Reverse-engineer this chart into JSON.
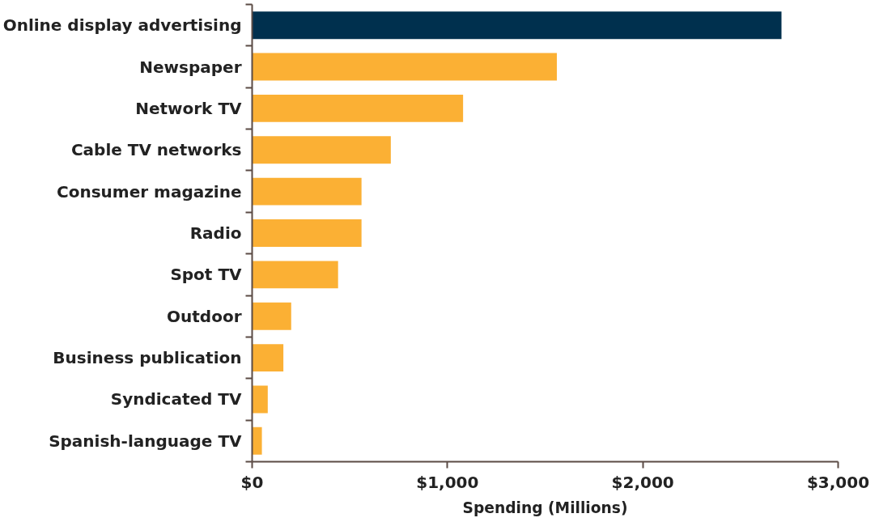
{
  "chart_data": {
    "type": "bar",
    "orientation": "horizontal",
    "categories": [
      "Online display advertising",
      "Newspaper",
      "Network TV",
      "Cable TV networks",
      "Consumer magazine",
      "Radio",
      "Spot TV",
      "Outdoor",
      "Business publication",
      "Syndicated TV",
      "Spanish-language TV"
    ],
    "values": [
      2710,
      1560,
      1080,
      710,
      560,
      560,
      440,
      200,
      160,
      80,
      50
    ],
    "colors": [
      "#00304e",
      "#fbb034",
      "#fbb034",
      "#fbb034",
      "#fbb034",
      "#fbb034",
      "#fbb034",
      "#fbb034",
      "#fbb034",
      "#fbb034",
      "#fbb034"
    ],
    "xlabel": "Spending (Millions)",
    "xlim": [
      0,
      3000
    ],
    "xticks": [
      {
        "value": 0,
        "label": "$0"
      },
      {
        "value": 1000,
        "label": "$1,000"
      },
      {
        "value": 2000,
        "label": "$2,000"
      },
      {
        "value": 3000,
        "label": "$3,000"
      }
    ],
    "grid": false
  }
}
